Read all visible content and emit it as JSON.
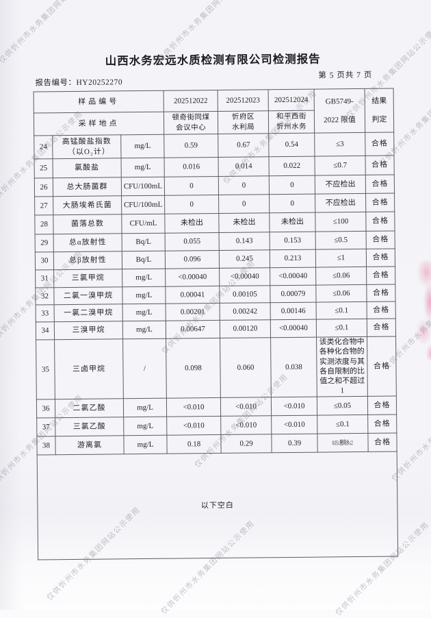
{
  "header": {
    "title": "山西水务宏远水质检测有限公司检测报告",
    "report_no_label": "报告编号：",
    "report_no": "HY20252270",
    "page_info": "第 5 页共 7 页"
  },
  "watermark": {
    "text": "仅供忻州市水务集团网站公示使用"
  },
  "stamp_color": "#db3c6e",
  "table": {
    "header": {
      "sample_no_label": "样品编号",
      "location_label": "采样地点",
      "sample_ids": [
        "202512022",
        "202512023",
        "202512024"
      ],
      "locations": [
        [
          "顿奇街同煤",
          "会议中心"
        ],
        [
          "忻府区",
          "水利局"
        ],
        [
          "和平西街",
          "忻州水务"
        ]
      ],
      "standard_line1": "GB5749-",
      "standard_line2": "2022 限值",
      "result_line1": "结果",
      "result_line2": "判定"
    },
    "rows": [
      {
        "no": "24",
        "item": "高锰酸盐指数",
        "item_line2": "（以O₂计）",
        "unit": "mg/L",
        "values": [
          "0.59",
          "0.67",
          "0.54"
        ],
        "limit": "≤3",
        "result": "合格"
      },
      {
        "no": "25",
        "item": "氯酸盐",
        "unit": "mg/L",
        "values": [
          "0.016",
          "0.014",
          "0.022"
        ],
        "limit": "≤0.7",
        "result": "合格"
      },
      {
        "no": "26",
        "item": "总大肠菌群",
        "unit": "CFU/100mL",
        "values": [
          "0",
          "0",
          "0"
        ],
        "limit": "不应检出",
        "result": "合格"
      },
      {
        "no": "27",
        "item": "大肠埃希氏菌",
        "unit": "CFU/100mL",
        "values": [
          "0",
          "0",
          "0"
        ],
        "limit": "不应检出",
        "result": "合格"
      },
      {
        "no": "28",
        "item": "菌落总数",
        "unit": "CFU/mL",
        "values": [
          "未检出",
          "未检出",
          "未检出"
        ],
        "limit": "≤100",
        "result": "合格"
      },
      {
        "no": "29",
        "item": "总α放射性",
        "unit": "Bq/L",
        "values": [
          "0.055",
          "0.143",
          "0.153"
        ],
        "limit": "≤0.5",
        "result": "合格"
      },
      {
        "no": "30",
        "item": "总β放射性",
        "unit": "Bq/L",
        "values": [
          "0.096",
          "0.245",
          "0.213"
        ],
        "limit": "≤1",
        "result": "合格"
      },
      {
        "no": "31",
        "item": "三氯甲烷",
        "unit": "mg/L",
        "values": [
          "<0.00040",
          "<0.00040",
          "<0.00040"
        ],
        "limit": "≤0.06",
        "result": "合格"
      },
      {
        "no": "32",
        "item": "二氯一溴甲烷",
        "unit": "mg/L",
        "values": [
          "0.00041",
          "0.00105",
          "0.00079"
        ],
        "limit": "≤0.06",
        "result": "合格"
      },
      {
        "no": "33",
        "item": "一氯二溴甲烷",
        "unit": "mg/L",
        "values": [
          "0.00201",
          "0.00242",
          "0.00146"
        ],
        "limit": "≤0.1",
        "result": "合格"
      },
      {
        "no": "34",
        "item": "三溴甲烷",
        "unit": "mg/L",
        "values": [
          "0.00647",
          "0.00120",
          "<0.00040"
        ],
        "limit": "≤0.1",
        "result": "合格"
      },
      {
        "no": "35",
        "item": "三卤甲烷",
        "unit": "/",
        "values": [
          "0.098",
          "0.060",
          "0.038"
        ],
        "limit": "该类化合物中各种化合物的实测浓度与其各自限制的比值之和不超过1",
        "limit_small": true,
        "result": "合格"
      },
      {
        "no": "36",
        "item": "二氯乙酸",
        "unit": "mg/L",
        "values": [
          "<0.010",
          "<0.010",
          "<0.010"
        ],
        "limit": "≤0.05",
        "result": "合格"
      },
      {
        "no": "37",
        "item": "三氯乙酸",
        "unit": "mg/L",
        "values": [
          "<0.010",
          "<0.010",
          "<0.010"
        ],
        "limit": "≤0.1",
        "result": "合格"
      },
      {
        "no": "38",
        "item": "游离氯",
        "unit": "mg/L",
        "values": [
          "0.18",
          "0.29",
          "0.39"
        ],
        "limit": "0.05≤管网水≤2",
        "limit_squeeze": true,
        "result": "合格"
      }
    ],
    "footer_note": "以下空白"
  }
}
